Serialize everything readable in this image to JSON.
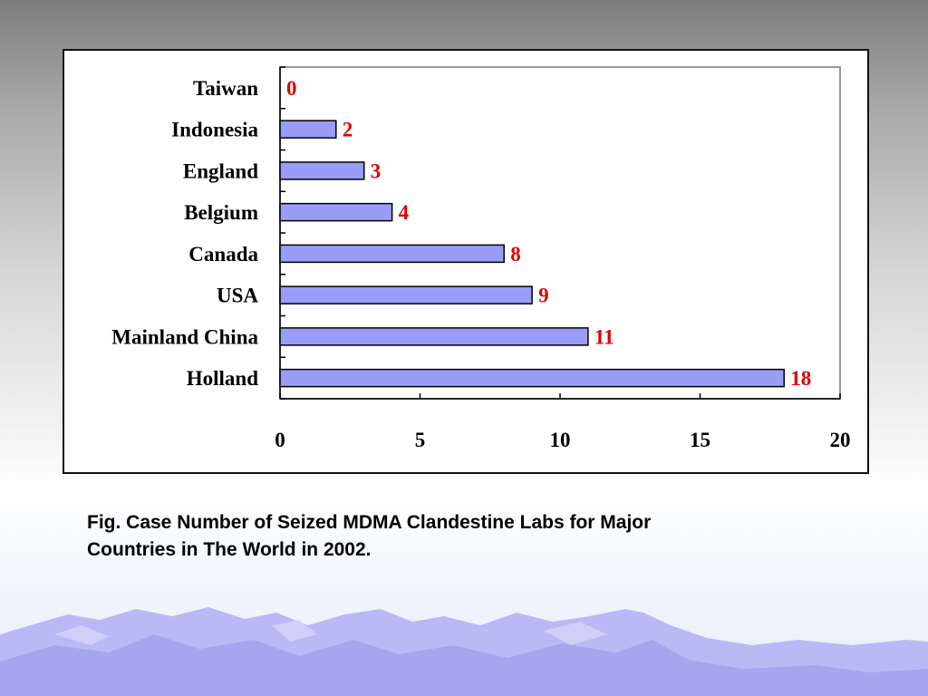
{
  "colors": {
    "bar_fill": "#9a9cf8",
    "bar_stroke": "#000000",
    "data_label": "#e00000",
    "mountain": "#b8b8f4"
  },
  "chart_data": {
    "type": "bar",
    "orientation": "horizontal",
    "categories": [
      "Taiwan",
      "Indonesia",
      "England",
      "Belgium",
      "Canada",
      "USA",
      "Mainland China",
      "Holland"
    ],
    "values": [
      0,
      2,
      3,
      4,
      8,
      9,
      11,
      18
    ],
    "data_labels": [
      "0",
      "2",
      "3",
      "4",
      "8",
      "9",
      "11",
      "18"
    ],
    "xlim": [
      0,
      20
    ],
    "xticks": [
      0,
      5,
      10,
      15,
      20
    ],
    "xtick_labels": [
      "0",
      "5",
      "10",
      "15",
      "20"
    ],
    "title": "",
    "xlabel": "",
    "ylabel": "",
    "grid": false,
    "legend": "none"
  },
  "caption": {
    "line1": "Fig.   Case Number of Seized MDMA Clandestine Labs for Major",
    "line2": "Countries in The World in 2002."
  }
}
